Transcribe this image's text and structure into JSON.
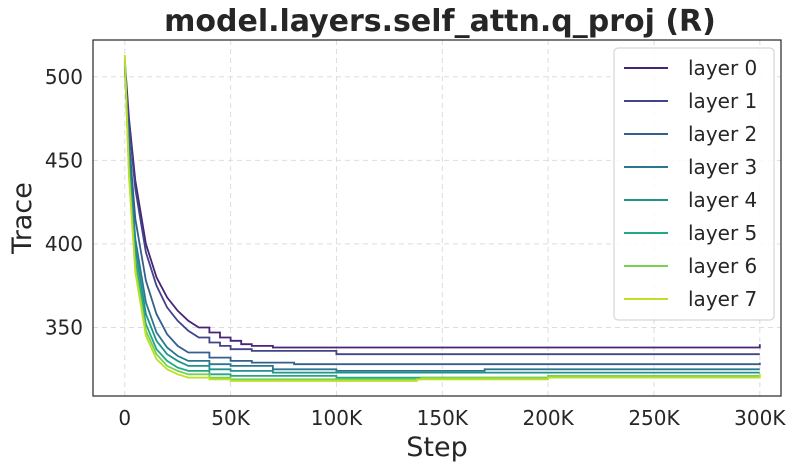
{
  "chart_data": {
    "type": "line",
    "title": "model.layers.self_attn.q_proj (R)",
    "xlabel": "Step",
    "ylabel": "Trace",
    "xlim": [
      -15000,
      310000
    ],
    "ylim": [
      309,
      522
    ],
    "x_ticks": [
      0,
      50000,
      100000,
      150000,
      200000,
      250000,
      300000
    ],
    "x_tick_labels": [
      "0",
      "50K",
      "100K",
      "150K",
      "200K",
      "250K",
      "300K"
    ],
    "y_ticks": [
      350,
      400,
      450,
      500
    ],
    "y_tick_labels": [
      "350",
      "400",
      "450",
      "500"
    ],
    "grid": true,
    "legend_position": "upper right",
    "series": [
      {
        "name": "layer 0",
        "color": "#482475",
        "x": [
          0,
          2000,
          5000,
          10000,
          15000,
          20000,
          25000,
          30000,
          35000,
          40000,
          45000,
          50000,
          55000,
          60000,
          70000,
          300000
        ],
        "y": [
          510,
          475,
          438,
          400,
          380,
          368,
          360,
          354,
          350,
          347,
          344,
          342,
          340,
          339,
          338,
          340
        ]
      },
      {
        "name": "layer 1",
        "color": "#414487",
        "x": [
          0,
          2000,
          5000,
          10000,
          15000,
          20000,
          25000,
          30000,
          35000,
          40000,
          45000,
          50000,
          60000,
          100000,
          150000,
          300000
        ],
        "y": [
          508,
          472,
          433,
          395,
          375,
          362,
          354,
          348,
          344,
          341,
          339,
          337,
          336,
          334,
          334,
          334
        ]
      },
      {
        "name": "layer 2",
        "color": "#355f8d",
        "x": [
          0,
          2000,
          5000,
          10000,
          15000,
          20000,
          25000,
          30000,
          40000,
          50000,
          60000,
          80000,
          120000,
          300000
        ],
        "y": [
          506,
          462,
          415,
          378,
          358,
          346,
          339,
          335,
          332,
          330,
          329,
          328,
          328,
          329
        ]
      },
      {
        "name": "layer 3",
        "color": "#2a788e",
        "x": [
          0,
          2000,
          5000,
          10000,
          15000,
          20000,
          25000,
          30000,
          40000,
          50000,
          70000,
          100000,
          170000,
          300000
        ],
        "y": [
          505,
          455,
          403,
          365,
          347,
          338,
          333,
          330,
          328,
          327,
          325,
          324,
          325,
          325
        ]
      },
      {
        "name": "layer 4",
        "color": "#21918c",
        "x": [
          0,
          2000,
          5000,
          10000,
          15000,
          20000,
          25000,
          30000,
          40000,
          50000,
          70000,
          100000,
          200000,
          300000
        ],
        "y": [
          508,
          450,
          397,
          358,
          342,
          334,
          330,
          327,
          325,
          324,
          323,
          323,
          323,
          323
        ]
      },
      {
        "name": "layer 5",
        "color": "#22a884",
        "x": [
          0,
          2000,
          5000,
          10000,
          15000,
          20000,
          25000,
          30000,
          40000,
          50000,
          70000,
          100000,
          200000,
          300000
        ],
        "y": [
          509,
          445,
          390,
          352,
          337,
          330,
          326,
          324,
          322,
          321,
          321,
          320,
          321,
          321
        ]
      },
      {
        "name": "layer 6",
        "color": "#7ad151",
        "x": [
          0,
          2000,
          5000,
          10000,
          15000,
          20000,
          25000,
          30000,
          40000,
          50000,
          70000,
          100000,
          140000,
          200000,
          300000
        ],
        "y": [
          511,
          442,
          386,
          348,
          334,
          327,
          324,
          322,
          320,
          319,
          319,
          319,
          320,
          321,
          322
        ]
      },
      {
        "name": "layer 7",
        "color": "#bddf26",
        "x": [
          0,
          2000,
          5000,
          10000,
          15000,
          20000,
          25000,
          30000,
          40000,
          50000,
          70000,
          100000,
          138000,
          200000,
          300000
        ],
        "y": [
          513,
          440,
          383,
          345,
          331,
          325,
          322,
          320,
          319,
          318,
          318,
          318,
          319,
          320,
          322
        ]
      }
    ]
  }
}
